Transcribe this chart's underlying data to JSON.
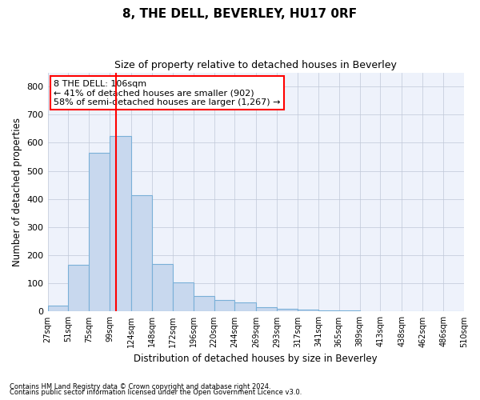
{
  "title": "8, THE DELL, BEVERLEY, HU17 0RF",
  "subtitle": "Size of property relative to detached houses in Beverley",
  "xlabel": "Distribution of detached houses by size in Beverley",
  "ylabel": "Number of detached properties",
  "bar_values": [
    20,
    165,
    565,
    625,
    415,
    170,
    103,
    55,
    42,
    32,
    15,
    10,
    8,
    5,
    3,
    2,
    1,
    1,
    0,
    1
  ],
  "bin_edges": [
    27,
    51,
    75,
    99,
    124,
    148,
    172,
    196,
    220,
    244,
    269,
    293,
    317,
    341,
    365,
    389,
    413,
    438,
    462,
    486,
    510
  ],
  "tick_labels": [
    "27sqm",
    "51sqm",
    "75sqm",
    "99sqm",
    "124sqm",
    "148sqm",
    "172sqm",
    "196sqm",
    "220sqm",
    "244sqm",
    "269sqm",
    "293sqm",
    "317sqm",
    "341sqm",
    "365sqm",
    "389sqm",
    "413sqm",
    "438sqm",
    "462sqm",
    "486sqm",
    "510sqm"
  ],
  "bar_color": "#c8d8ee",
  "bar_edge_color": "#7ab0d8",
  "red_line_x": 106,
  "ylim": [
    0,
    850
  ],
  "yticks": [
    0,
    100,
    200,
    300,
    400,
    500,
    600,
    700,
    800
  ],
  "annotation_line1": "8 THE DELL: 106sqm",
  "annotation_line2": "← 41% of detached houses are smaller (902)",
  "annotation_line3": "58% of semi-detached houses are larger (1,267) →",
  "footnote1": "Contains HM Land Registry data © Crown copyright and database right 2024.",
  "footnote2": "Contains public sector information licensed under the Open Government Licence v3.0.",
  "background_color": "#eef2fb"
}
